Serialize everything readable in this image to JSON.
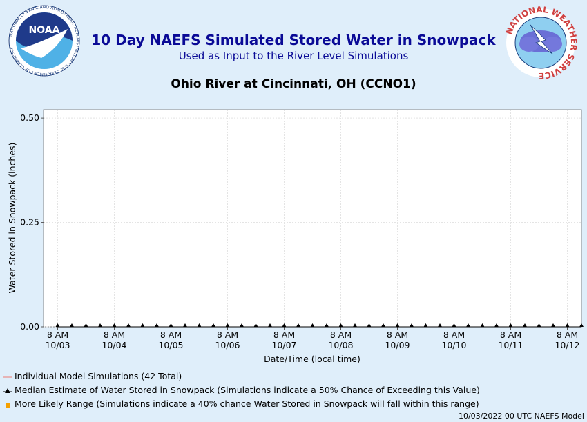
{
  "header": {
    "title": "10 Day NAEFS Simulated Stored Water in Snowpack",
    "subtitle": "Used as Input to the River Level Simulations",
    "location": "Ohio River at Cincinnati, OH (CCNO1)"
  },
  "logos": {
    "noaa_text": "NOAA",
    "noaa_ring_text": "NATIONAL OCEANIC AND ATMOSPHERIC ADMINISTRATION · U.S. DEPARTMENT OF COMMERCE",
    "nws_ring_text": "NATIONAL WEATHER SERVICE"
  },
  "chart_data": {
    "type": "line",
    "xlabel": "Date/Time (local time)",
    "ylabel": "Water Stored in Snowpack (inches)",
    "ylim": [
      0,
      0.52
    ],
    "yticks": [
      0.0,
      0.25,
      0.5
    ],
    "ytick_labels": [
      "0.00",
      "0.25",
      "0.50"
    ],
    "xticks": [
      {
        "time": "8 AM",
        "date": "10/03"
      },
      {
        "time": "8 AM",
        "date": "10/04"
      },
      {
        "time": "8 AM",
        "date": "10/05"
      },
      {
        "time": "8 AM",
        "date": "10/06"
      },
      {
        "time": "8 AM",
        "date": "10/07"
      },
      {
        "time": "8 AM",
        "date": "10/08"
      },
      {
        "time": "8 AM",
        "date": "10/09"
      },
      {
        "time": "8 AM",
        "date": "10/10"
      },
      {
        "time": "8 AM",
        "date": "10/11"
      },
      {
        "time": "8 AM",
        "date": "10/12"
      }
    ],
    "x_start": "2022-10-03 02:00",
    "x_end": "2022-10-12 14:00",
    "grid": true,
    "series": [
      {
        "name": "Median Estimate of Water Stored in Snowpack",
        "marker": "triangle",
        "color": "#000000",
        "x": [
          "2022-10-03 08:00",
          "2022-10-03 14:00",
          "2022-10-03 20:00",
          "2022-10-04 02:00",
          "2022-10-04 08:00",
          "2022-10-04 14:00",
          "2022-10-04 20:00",
          "2022-10-05 02:00",
          "2022-10-05 08:00",
          "2022-10-05 14:00",
          "2022-10-05 20:00",
          "2022-10-06 02:00",
          "2022-10-06 08:00",
          "2022-10-06 14:00",
          "2022-10-06 20:00",
          "2022-10-07 02:00",
          "2022-10-07 08:00",
          "2022-10-07 14:00",
          "2022-10-07 20:00",
          "2022-10-08 02:00",
          "2022-10-08 08:00",
          "2022-10-08 14:00",
          "2022-10-08 20:00",
          "2022-10-09 02:00",
          "2022-10-09 08:00",
          "2022-10-09 14:00",
          "2022-10-09 20:00",
          "2022-10-10 02:00",
          "2022-10-10 08:00",
          "2022-10-10 14:00",
          "2022-10-10 20:00",
          "2022-10-11 02:00",
          "2022-10-11 08:00",
          "2022-10-11 14:00",
          "2022-10-11 20:00",
          "2022-10-12 02:00",
          "2022-10-12 08:00",
          "2022-10-12 14:00"
        ],
        "values": [
          0,
          0,
          0,
          0,
          0,
          0,
          0,
          0,
          0,
          0,
          0,
          0,
          0,
          0,
          0,
          0,
          0,
          0,
          0,
          0,
          0,
          0,
          0,
          0,
          0,
          0,
          0,
          0,
          0,
          0,
          0,
          0,
          0,
          0,
          0,
          0,
          0,
          0
        ]
      }
    ],
    "legend": [
      {
        "label": "Individual Model Simulations (42 Total)",
        "kind": "line",
        "color": "#e8a0a0"
      },
      {
        "label": "Median Estimate of Water Stored in Snowpack (Simulations indicate a 50% Chance of Exceeding this Value)",
        "kind": "triangle",
        "color": "#000000"
      },
      {
        "label": "More Likely Range (Simulations indicate a 40% chance Water Stored in Snowpack will fall within this range)",
        "kind": "square",
        "color": "#f5a000"
      }
    ],
    "legend_placement": "bottom-left"
  },
  "footer": {
    "text": "10/03/2022 00 UTC NAEFS Model"
  }
}
